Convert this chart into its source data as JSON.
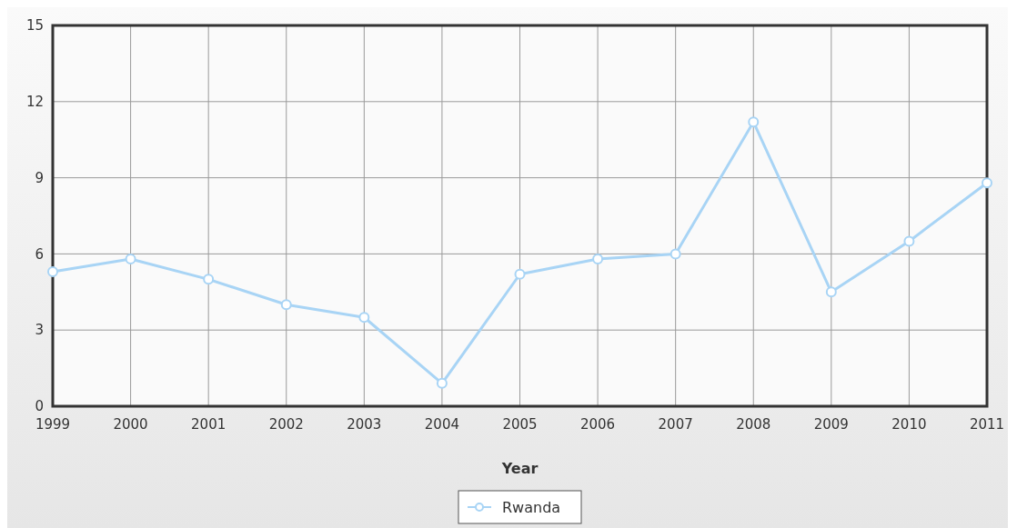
{
  "chart_data": {
    "type": "line",
    "xlabel": "Year",
    "categories": [
      "1999",
      "2000",
      "2001",
      "2002",
      "2003",
      "2004",
      "2005",
      "2006",
      "2007",
      "2008",
      "2009",
      "2010",
      "2011"
    ],
    "series": [
      {
        "name": "Rwanda",
        "color": "#a8d4f5",
        "values": [
          5.3,
          5.8,
          5.0,
          4.0,
          3.5,
          0.9,
          5.2,
          5.8,
          6.0,
          11.2,
          4.5,
          6.5,
          8.8
        ]
      }
    ],
    "ylim": [
      0,
      15
    ],
    "yticks": [
      0,
      3,
      6,
      9,
      12,
      15
    ],
    "grid": true,
    "legend": "bottom",
    "marker": "circle",
    "line_style": "solid"
  }
}
